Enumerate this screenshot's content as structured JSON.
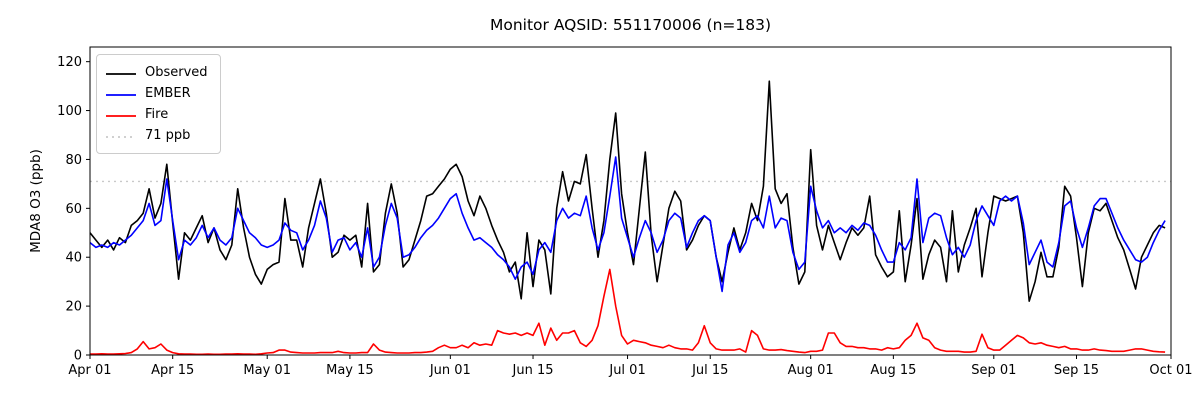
{
  "chart_data": {
    "type": "line",
    "title": "Monitor AQSID: 551170006 (n=183)",
    "ylabel": "MDA8 O3 (ppb)",
    "xlabel": "",
    "ylim": [
      0,
      126
    ],
    "yticks": [
      0,
      20,
      40,
      60,
      80,
      100,
      120
    ],
    "x_range_days": [
      0,
      183
    ],
    "x_ticks": [
      {
        "label": "Apr 01",
        "day": 0
      },
      {
        "label": "Apr 15",
        "day": 14
      },
      {
        "label": "May 01",
        "day": 30
      },
      {
        "label": "May 15",
        "day": 44
      },
      {
        "label": "Jun 01",
        "day": 61
      },
      {
        "label": "Jun 15",
        "day": 75
      },
      {
        "label": "Jul 01",
        "day": 91
      },
      {
        "label": "Jul 15",
        "day": 105
      },
      {
        "label": "Aug 01",
        "day": 122
      },
      {
        "label": "Aug 15",
        "day": 136
      },
      {
        "label": "Sep 01",
        "day": 153
      },
      {
        "label": "Sep 15",
        "day": 167
      },
      {
        "label": "Oct 01",
        "day": 183
      }
    ],
    "grid": false,
    "legend_position": "upper-left",
    "threshold": {
      "value": 71,
      "label": "71 ppb",
      "color": "#c9c9c9",
      "style": "dotted"
    },
    "series": [
      {
        "name": "Observed",
        "color": "#000000",
        "style": "solid",
        "values": [
          50,
          47,
          44,
          47,
          43,
          48,
          46,
          53,
          55,
          58,
          68,
          56,
          62,
          78,
          54,
          31,
          50,
          47,
          52,
          57,
          46,
          52,
          43,
          39,
          45,
          68,
          52,
          40,
          33,
          29,
          35,
          37,
          38,
          64,
          47,
          47,
          36,
          52,
          62,
          72,
          58,
          40,
          42,
          49,
          47,
          49,
          36,
          62,
          34,
          37,
          58,
          70,
          58,
          36,
          39,
          47,
          55,
          65,
          66,
          69,
          72,
          76,
          78,
          73,
          63,
          57,
          65,
          60,
          53,
          47,
          42,
          34,
          38,
          23,
          50,
          28,
          47,
          43,
          25,
          60,
          75,
          63,
          71,
          70,
          82,
          60,
          40,
          55,
          80,
          99,
          66,
          50,
          37,
          60,
          83,
          49,
          30,
          45,
          60,
          67,
          63,
          43,
          47,
          53,
          57,
          55,
          40,
          30,
          42,
          52,
          43,
          50,
          62,
          55,
          69,
          112,
          68,
          62,
          66,
          44,
          29,
          34,
          84,
          53,
          43,
          53,
          46,
          39,
          46,
          52,
          49,
          52,
          65,
          41,
          36,
          32,
          34,
          59,
          30,
          45,
          64,
          31,
          41,
          47,
          44,
          30,
          59,
          34,
          45,
          52,
          60,
          32,
          50,
          65,
          64,
          63,
          64,
          65,
          50,
          22,
          30,
          42,
          32,
          32,
          44,
          69,
          65,
          48,
          28,
          50,
          60,
          59,
          62,
          55,
          48,
          43,
          35,
          27,
          40,
          45,
          50,
          53,
          52
        ]
      },
      {
        "name": "EMBER",
        "color": "#0000ff",
        "style": "solid",
        "values": [
          46,
          44,
          45,
          44,
          46,
          45,
          47,
          49,
          52,
          55,
          62,
          53,
          55,
          72,
          55,
          39,
          47,
          45,
          48,
          53,
          48,
          52,
          47,
          45,
          48,
          60,
          55,
          50,
          48,
          45,
          44,
          45,
          47,
          54,
          51,
          50,
          43,
          47,
          53,
          63,
          56,
          42,
          47,
          48,
          43,
          46,
          40,
          52,
          36,
          40,
          53,
          62,
          56,
          40,
          41,
          44,
          48,
          51,
          53,
          56,
          60,
          64,
          66,
          58,
          52,
          47,
          48,
          46,
          44,
          41,
          39,
          36,
          31,
          36,
          38,
          33,
          43,
          46,
          42,
          55,
          60,
          56,
          58,
          57,
          65,
          52,
          43,
          50,
          65,
          81,
          56,
          48,
          40,
          48,
          55,
          50,
          42,
          47,
          55,
          58,
          56,
          44,
          50,
          55,
          57,
          55,
          40,
          26,
          45,
          50,
          42,
          46,
          55,
          57,
          52,
          65,
          52,
          56,
          55,
          42,
          35,
          38,
          69,
          59,
          52,
          55,
          50,
          52,
          50,
          53,
          51,
          54,
          53,
          49,
          43,
          38,
          38,
          46,
          43,
          48,
          72,
          46,
          56,
          58,
          57,
          48,
          41,
          44,
          40,
          45,
          55,
          61,
          57,
          53,
          63,
          65,
          63,
          65,
          54,
          37,
          42,
          47,
          38,
          36,
          46,
          61,
          63,
          52,
          44,
          52,
          61,
          64,
          64,
          58,
          52,
          47,
          43,
          39,
          38,
          40,
          46,
          51,
          55
        ]
      },
      {
        "name": "Fire",
        "color": "#ff0000",
        "style": "solid",
        "values": [
          0.4,
          0.4,
          0.5,
          0.4,
          0.4,
          0.5,
          0.6,
          1,
          2.5,
          5.5,
          2.5,
          3,
          4.5,
          2,
          1,
          0.5,
          0.4,
          0.4,
          0.3,
          0.3,
          0.4,
          0.3,
          0.3,
          0.4,
          0.4,
          0.5,
          0.4,
          0.4,
          0.3,
          0.5,
          0.8,
          1,
          2,
          2,
          1.2,
          1,
          0.8,
          0.8,
          0.8,
          1,
          1,
          1,
          1.5,
          1,
          0.8,
          0.8,
          1,
          1,
          4.5,
          2,
          1.2,
          1,
          0.8,
          0.8,
          0.8,
          1,
          1,
          1.2,
          1.5,
          3,
          4,
          3,
          3,
          4,
          3,
          5,
          4,
          4.5,
          4,
          10,
          9,
          8.5,
          9,
          8,
          9,
          8,
          13,
          4,
          11,
          6,
          9,
          9,
          10,
          5,
          3.5,
          6,
          12,
          24,
          35,
          20,
          8,
          4.5,
          6,
          5.5,
          5,
          4,
          3.5,
          3,
          4,
          3,
          2.5,
          2.5,
          2,
          5,
          12,
          5,
          2.5,
          2,
          2,
          2,
          2.5,
          1.2,
          10,
          8,
          2.5,
          2,
          2,
          2.2,
          1.8,
          1.5,
          1.2,
          1,
          1.5,
          1.5,
          2,
          9,
          9,
          5,
          3.5,
          3.5,
          3,
          3,
          2.5,
          2.5,
          2,
          3,
          2.5,
          3,
          6,
          8,
          13,
          7,
          6,
          3,
          2,
          1.5,
          1.5,
          1.5,
          1.2,
          1.2,
          1.5,
          8.5,
          3,
          2,
          2,
          4,
          6,
          8,
          7,
          5,
          4.5,
          5,
          4,
          3.5,
          3,
          3.5,
          2.5,
          2.5,
          2,
          2,
          2.5,
          2,
          1.8,
          1.5,
          1.5,
          1.5,
          2,
          2.5,
          2.5,
          2,
          1.5,
          1.3,
          1.2
        ]
      }
    ],
    "legend_entries": [
      {
        "label": "Observed",
        "color": "#000000",
        "dash": ""
      },
      {
        "label": "EMBER",
        "color": "#0000ff",
        "dash": ""
      },
      {
        "label": "Fire",
        "color": "#ff0000",
        "dash": ""
      },
      {
        "label": "71 ppb",
        "color": "#c9c9c9",
        "dash": "2 4"
      }
    ]
  }
}
